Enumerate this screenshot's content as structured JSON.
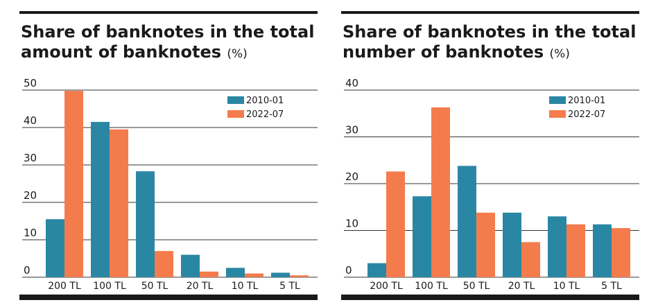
{
  "colors": {
    "series_2010": "#2a87a4",
    "series_2022": "#f47c4c",
    "grid": "#333333",
    "text": "#1a1a1a"
  },
  "chart_data": [
    {
      "type": "bar",
      "title": "Share of banknotes in the total amount of banknotes",
      "unit": "(%)",
      "categories": [
        "200 TL",
        "100 TL",
        "50 TL",
        "20 TL",
        "10 TL",
        "5 TL"
      ],
      "series": [
        {
          "name": "2010-01",
          "values": [
            15.5,
            41.5,
            28.3,
            6.0,
            2.5,
            1.2
          ]
        },
        {
          "name": "2022-07",
          "values": [
            49.8,
            39.5,
            7.0,
            1.5,
            1.0,
            0.5
          ]
        }
      ],
      "ylim": [
        0,
        50
      ],
      "yticks": [
        0,
        10,
        20,
        30,
        40,
        50
      ],
      "grid": true,
      "legend": "top-right"
    },
    {
      "type": "bar",
      "title": "Share of banknotes in the total number of banknotes",
      "unit": "(%)",
      "categories": [
        "200 TL",
        "100 TL",
        "50 TL",
        "20 TL",
        "10 TL",
        "5 TL"
      ],
      "series": [
        {
          "name": "2010-01",
          "values": [
            3.0,
            17.3,
            23.8,
            13.8,
            13.0,
            11.3
          ]
        },
        {
          "name": "2022-07",
          "values": [
            22.6,
            36.3,
            13.8,
            7.5,
            11.3,
            10.5
          ]
        }
      ],
      "ylim": [
        0,
        40
      ],
      "yticks": [
        0,
        10,
        20,
        30,
        40
      ],
      "grid": true,
      "legend": "top-right"
    }
  ]
}
